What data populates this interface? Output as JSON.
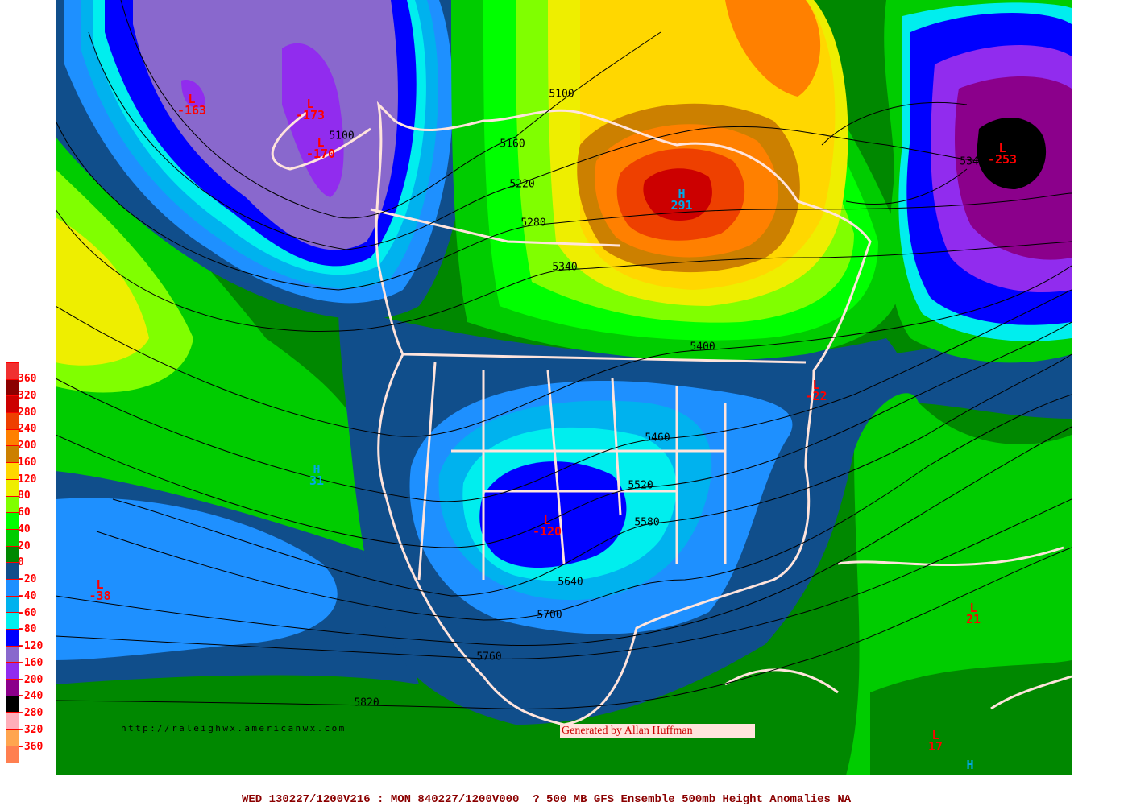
{
  "map": {
    "variable": "500mb Height Anomalies",
    "colors": {
      "base_green": "#008800",
      "coastline": "#ffe4dc",
      "contour": "#000000",
      "low_label": "#ff0000",
      "high_label": "#00a8e8"
    }
  },
  "legend": {
    "swatches": [
      "#f03030",
      "#8b0000",
      "#cc0000",
      "#ee4000",
      "#ff8000",
      "#cc8000",
      "#ffd700",
      "#eeee00",
      "#80ff00",
      "#00ff00",
      "#00cc00",
      "#008800",
      "#104e8b",
      "#1e90ff",
      "#00b2ee",
      "#00eeee",
      "#0000ff",
      "#8968cd",
      "#912cee",
      "#8b008b",
      "#000000",
      "#ffaeb9",
      "#ffa54f",
      "#ff7f50"
    ],
    "labels": [
      "360",
      "320",
      "280",
      "240",
      "200",
      "160",
      "120",
      "80",
      "60",
      "40",
      "20",
      "0",
      "-20",
      "-40",
      "-60",
      "-80",
      "-120",
      "-160",
      "-200",
      "-240",
      "-280",
      "-320",
      "-360"
    ]
  },
  "centers": [
    {
      "type": "L",
      "value": "-163"
    },
    {
      "type": "L",
      "value": "-173"
    },
    {
      "type": "L",
      "value": "-170"
    },
    {
      "type": "H",
      "value": "291"
    },
    {
      "type": "L",
      "value": "-253"
    },
    {
      "type": "L",
      "value": "-22"
    },
    {
      "type": "H",
      "value": "31"
    },
    {
      "type": "L",
      "value": "-120"
    },
    {
      "type": "L",
      "value": "-38"
    },
    {
      "type": "L",
      "value": "21"
    },
    {
      "type": "L",
      "value": "17"
    },
    {
      "type": "H",
      "value": ""
    }
  ],
  "contour_labels": [
    "5100",
    "5100",
    "5160",
    "5220",
    "5280",
    "5340",
    "5400",
    "5460",
    "5520",
    "5580",
    "5640",
    "5700",
    "5760",
    "5820",
    "534"
  ],
  "url_text": "http://raleighwx.americanwx.com",
  "credit": "Generated by Allan Huffman",
  "caption": "WED 130227/1200V216 : MON 840227/1200V000  ? 500 MB GFS Ensemble 500mb Height Anomalies NA"
}
